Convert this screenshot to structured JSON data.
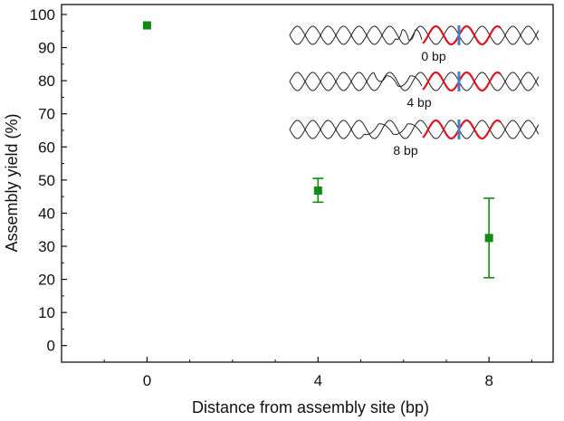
{
  "chart_data": {
    "type": "scatter",
    "xlabel": "Distance from assembly site (bp)",
    "ylabel": "Assembly yield (%)",
    "xlim": [
      -2,
      9.5
    ],
    "ylim": [
      -5,
      103
    ],
    "x_ticks": [
      0,
      4,
      8
    ],
    "x_tick_labels": [
      "0",
      "4",
      "8"
    ],
    "y_ticks": [
      0,
      10,
      20,
      30,
      40,
      50,
      60,
      70,
      80,
      90,
      100
    ],
    "y_tick_labels": [
      "0",
      "10",
      "20",
      "30",
      "40",
      "50",
      "60",
      "70",
      "80",
      "90",
      "100"
    ],
    "grid": false,
    "legend": "none",
    "series": [
      {
        "marker": "square",
        "color": "#138a13",
        "points": [
          {
            "x": 0,
            "y": 96.7,
            "err_low": 96.7,
            "err_high": 96.7
          },
          {
            "x": 4,
            "y": 46.8,
            "err_low": 43.3,
            "err_high": 50.5
          },
          {
            "x": 8,
            "y": 32.5,
            "err_low": 20.5,
            "err_high": 44.5
          }
        ]
      }
    ],
    "inset": {
      "description_labels": [
        "0 bp",
        "4 bp",
        "8 bp"
      ],
      "strand_color": "#222222",
      "highlight_color": "#e0141e",
      "marker_color": "#4a7ec8"
    }
  }
}
